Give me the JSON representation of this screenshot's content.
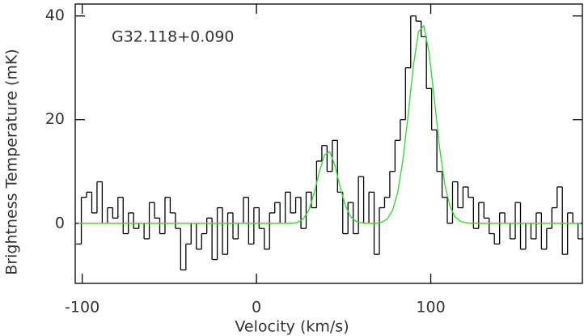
{
  "chart_data": {
    "type": "step",
    "annotation": "G32.118+0.090",
    "x_label": "Velocity (km/s)",
    "y_label": "Brightness Temperature (mK)",
    "xlim": [
      -104,
      187
    ],
    "ylim": [
      -11.6,
      42.3
    ],
    "xticks": [
      -100,
      0,
      100
    ],
    "yticks": [
      0,
      20,
      40
    ],
    "x": [
      -102,
      -99,
      -96,
      -93,
      -90,
      -87,
      -84,
      -81,
      -78,
      -75,
      -72,
      -69,
      -66,
      -63,
      -60,
      -57,
      -54,
      -51,
      -48,
      -45,
      -42,
      -39,
      -36,
      -33,
      -30,
      -27,
      -24,
      -21,
      -18,
      -15,
      -12,
      -9,
      -6,
      -3,
      0,
      3,
      6,
      9,
      12,
      15,
      18,
      21,
      24,
      27,
      30,
      33,
      36,
      39,
      42,
      45,
      48,
      51,
      54,
      57,
      60,
      63,
      66,
      69,
      72,
      75,
      78,
      81,
      84,
      87,
      90,
      93,
      96,
      99,
      102,
      105,
      108,
      111,
      114,
      117,
      120,
      123,
      126,
      129,
      132,
      135,
      138,
      141,
      144,
      147,
      150,
      153,
      156,
      159,
      162,
      165,
      168,
      171,
      174,
      177,
      180,
      183,
      186
    ],
    "series": [
      {
        "color": "#000000",
        "values": [
          -4,
          5,
          6,
          2,
          8,
          0,
          3,
          1,
          5,
          -2,
          2,
          -1,
          0,
          -3,
          4,
          1,
          -2,
          5,
          2,
          -1,
          -9,
          -4,
          0,
          -5,
          -2,
          1,
          -7,
          3,
          -6,
          2,
          -3,
          0,
          5,
          -4,
          3,
          -1,
          -5,
          2,
          4,
          0,
          6,
          2,
          5,
          -1,
          6,
          3,
          12,
          15,
          10,
          16,
          6,
          -2,
          4,
          -2,
          9,
          0,
          6,
          -6,
          3,
          5,
          10,
          16,
          20,
          30,
          40,
          39,
          36,
          26,
          18,
          10,
          5,
          0,
          8,
          3,
          7,
          5,
          -1,
          4,
          1,
          -2,
          -4,
          2,
          0,
          -3,
          4,
          -5,
          0,
          -3,
          2,
          -5,
          -1,
          3,
          7,
          -6,
          2,
          0,
          -3
        ]
      },
      {
        "color": "#33dd33",
        "values": [
          0,
          0,
          0,
          0,
          0,
          0,
          0,
          0,
          0,
          0,
          0,
          0,
          0,
          0,
          0,
          0,
          0,
          0,
          0,
          0,
          0,
          0,
          0,
          0,
          0,
          0,
          0,
          0,
          0,
          0,
          0,
          0,
          0,
          0,
          0,
          0,
          0,
          0,
          0,
          0,
          0,
          0,
          0.2,
          0.9,
          2.5,
          5.7,
          9.8,
          13.2,
          13.8,
          11.2,
          7.0,
          3.4,
          1.3,
          0.4,
          0.1,
          0,
          0,
          0,
          0.2,
          0.8,
          2.4,
          5.9,
          12.1,
          20.8,
          30.3,
          37.0,
          38.1,
          33.0,
          24.1,
          14.8,
          7.6,
          3.3,
          1.2,
          0.4,
          0.1,
          0,
          0,
          0,
          0,
          0,
          0,
          0,
          0,
          0,
          0,
          0,
          0,
          0,
          0,
          0,
          0,
          0,
          0,
          0,
          0,
          0,
          0
        ]
      }
    ]
  }
}
